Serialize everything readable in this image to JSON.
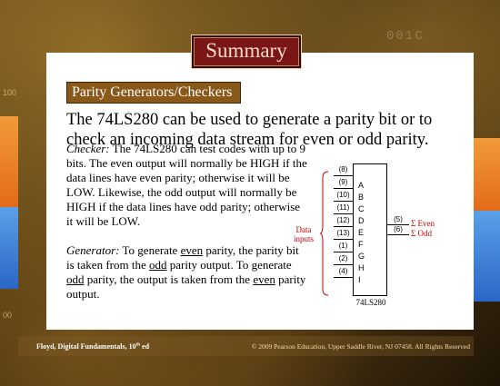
{
  "slide": {
    "title": "Summary",
    "subheading": "Parity Generators/Checkers",
    "intro": "The 74LS280 can be used to generate a parity bit or to check an incoming data stream for even or odd parity.",
    "checker": {
      "lead": "Checker:",
      "text": "The 74LS280 can test codes with up to 9 bits. The even output will normally be HIGH if the data lines have even parity; otherwise it will be LOW. Likewise, the odd output will normally be HIGH if the data lines have odd parity; otherwise it will be LOW."
    },
    "generator": {
      "lead": "Generator:",
      "t1": "To generate",
      "w1": "even",
      "t2": "parity, the parity bit is taken from the",
      "w2": "odd",
      "t3": "parity output. To generate",
      "w3": "odd",
      "t4": "parity, the output is taken from the",
      "w4": "even",
      "t5": "parity output."
    }
  },
  "diagram": {
    "data_inputs_label": "Data inputs",
    "chip_label": "74LS280",
    "inputs": [
      {
        "pin": "(8)",
        "letter": "A"
      },
      {
        "pin": "(9)",
        "letter": "B"
      },
      {
        "pin": "(10)",
        "letter": "C"
      },
      {
        "pin": "(11)",
        "letter": "D"
      },
      {
        "pin": "(12)",
        "letter": "E"
      },
      {
        "pin": "(13)",
        "letter": "F"
      },
      {
        "pin": "(1)",
        "letter": "G"
      },
      {
        "pin": "(2)",
        "letter": "H"
      },
      {
        "pin": "(4)",
        "letter": "I"
      }
    ],
    "outputs": [
      {
        "pin": "(5)",
        "label": "Σ Even"
      },
      {
        "pin": "(6)",
        "label": "Σ Odd"
      }
    ]
  },
  "decor": {
    "side_number_top": "100",
    "side_number_bottom": "00",
    "bg_digits": "001C"
  },
  "footer": {
    "left": "Floyd, Digital Fundamentals, 10",
    "left_sup": "th",
    "left_tail": "ed",
    "right": "© 2009 Pearson Education, Upper Saddle River, NJ 07458. All Rights Reserved"
  },
  "colors": {
    "title_bg": "#7a1616",
    "subhead_bg": "#8a5818",
    "accent_red": "#c00000",
    "orange_band": "#f29a3a",
    "blue_band": "#2a66c8"
  }
}
